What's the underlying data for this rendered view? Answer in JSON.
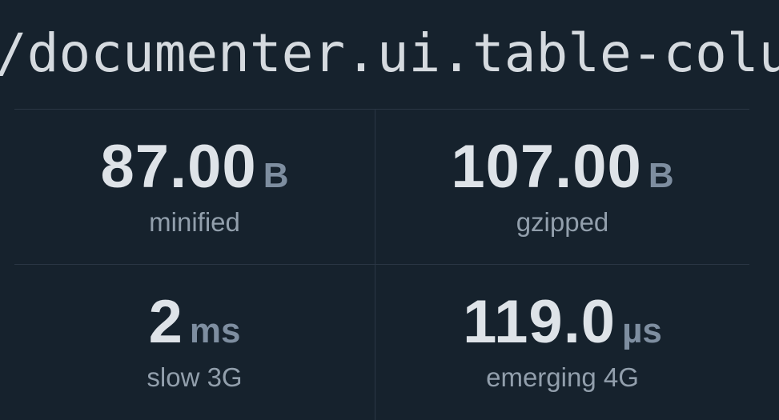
{
  "header": {
    "package_name": "/documenter.ui.table-colu"
  },
  "stats": [
    {
      "id": "minified",
      "value": "87.00",
      "unit": "B",
      "label": "minified"
    },
    {
      "id": "gzipped",
      "value": "107.00",
      "unit": "B",
      "label": "gzipped"
    },
    {
      "id": "slow-3g",
      "value": "2",
      "unit": "ms",
      "label": "slow 3G"
    },
    {
      "id": "emerging-4g",
      "value": "119.0",
      "unit": "µs",
      "label": "emerging 4G"
    }
  ],
  "colors": {
    "background": "#16222D",
    "divider": "#2A3644",
    "title_text": "#D5DADF",
    "stat_value": "#DEE3E8",
    "stat_unit": "#7E8EA0",
    "stat_label": "#929FAC"
  }
}
